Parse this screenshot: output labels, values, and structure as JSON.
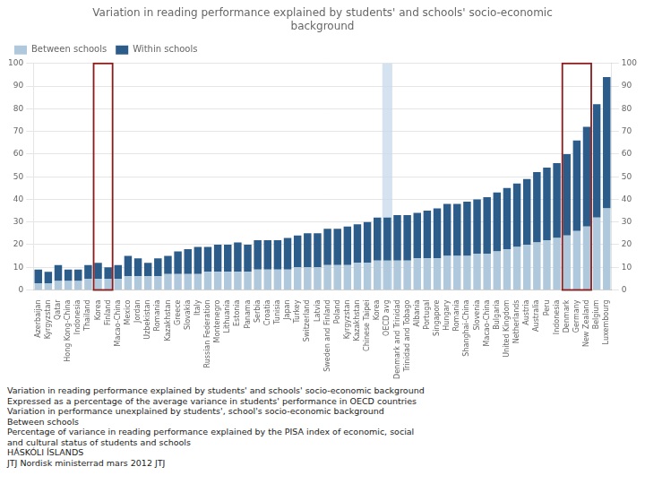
{
  "chart_data": {
    "type": "bar",
    "title": "Variation in reading performance explained by students' and schools' socio-economic\nbackground",
    "categories": [
      "Azerbaijan",
      "Kyrgyzstan",
      "Qatar",
      "Hong Kong-China",
      "Indonesia",
      "Thailand",
      "Korea",
      "Finland",
      "Macao-China",
      "Mexico",
      "Jordan",
      "Uzbekistan",
      "Romania",
      "Kazakhstan",
      "Greece",
      "Slovakia",
      "Italy",
      "Russian Federation",
      "Montenegro",
      "Lithuania",
      "Estonia",
      "Panama",
      "Serbia",
      "Croatia",
      "Tunisia",
      "Japan",
      "Turkey",
      "Switzerland",
      "Latvia",
      "Sweden and\nFinland",
      "Poland",
      "Kyrgyzstan",
      "Kazakhstan",
      "Chinese Taipei",
      "Korea",
      "OECD avg",
      "Denmark and\nTrinidad",
      "Trinidad and\nTobago",
      "Albania",
      "Portugal",
      "Singapore",
      "Hungary",
      "Romania",
      "Shanghai-China",
      "Slovenia",
      "Macao-China",
      "Bulgaria",
      "United Kingdom",
      "Netherlands",
      "Austria",
      "Australia",
      "Peru",
      "Indonesia",
      "Denmark",
      "Germany",
      "New Zealand",
      "Belgium",
      "Luxembourg"
    ],
    "series": [
      {
        "name": "Between schools",
        "color": "#b0c8dc",
        "values": [
          3,
          3,
          4,
          4,
          4,
          5,
          5,
          5,
          5,
          6,
          6,
          6,
          6,
          7,
          7,
          7,
          7,
          8,
          8,
          8,
          8,
          8,
          9,
          9,
          9,
          9,
          10,
          10,
          10,
          11,
          11,
          11,
          12,
          12,
          13,
          13,
          13,
          13,
          14,
          14,
          14,
          15,
          15,
          15,
          16,
          16,
          17,
          18,
          19,
          20,
          21,
          22,
          23,
          24,
          26,
          28,
          32,
          36
        ]
      },
      {
        "name": "Within schools",
        "color": "#2b5c8a",
        "values": [
          6,
          5,
          7,
          5,
          5,
          6,
          7,
          5,
          6,
          9,
          8,
          6,
          8,
          8,
          10,
          11,
          12,
          11,
          12,
          12,
          13,
          12,
          13,
          13,
          13,
          14,
          14,
          15,
          15,
          16,
          16,
          17,
          17,
          18,
          19,
          19,
          20,
          20,
          20,
          21,
          22,
          23,
          23,
          24,
          24,
          25,
          26,
          27,
          28,
          29,
          31,
          32,
          33,
          36,
          40,
          44,
          50,
          58
        ]
      }
    ],
    "stacked": true,
    "ylim": [
      0,
      100
    ],
    "yticks": [
      0,
      10,
      20,
      30,
      40,
      50,
      60,
      70,
      80,
      90,
      100
    ],
    "y2lim": [
      0,
      100
    ],
    "y2ticks": [
      0,
      10,
      20,
      30,
      40,
      50,
      60,
      70,
      80,
      90,
      100
    ],
    "grid": true,
    "legend": "upper left",
    "highlights": [
      {
        "from": 35,
        "to": 35,
        "color": "#c5daea"
      }
    ],
    "boxes": [
      {
        "from": 6,
        "to": 7,
        "color": "#8b1a1a"
      },
      {
        "from": 53,
        "to": 55,
        "color": "#8b1a1a"
      }
    ],
    "annotations": [
      "Variation in reading performance explained by students' and schools' socio-economic background",
      "Expressed as a percentage of the average variance in students' performance in OECD countries",
      "Variation in performance unexplained by students', school's socio-economic background\nBetween schools",
      "Percentage of variance in reading performance explained by the PISA index of economic, social\nand cultural status of students and schools",
      "HÁSKÓLI ÍSLANDS",
      "JTJ Nordisk ministerrad mars 2012 JTJ"
    ]
  }
}
